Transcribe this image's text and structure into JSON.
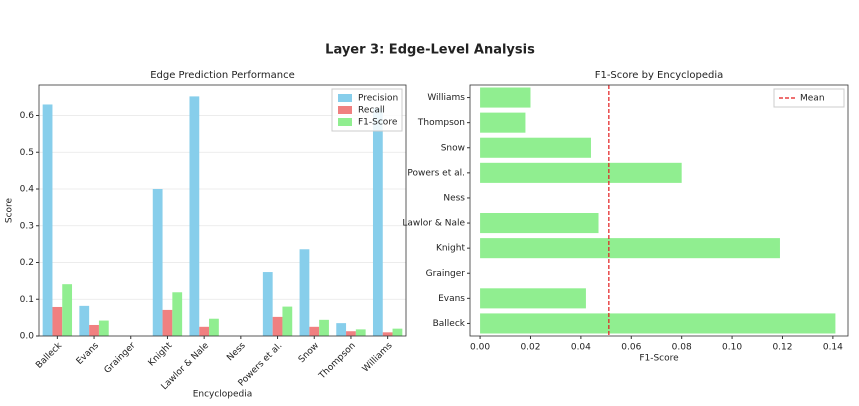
{
  "title": "Layer 3: Edge-Level Analysis",
  "chart_data": [
    {
      "type": "bar",
      "title": "Edge Prediction Performance",
      "xlabel": "Encyclopedia",
      "ylabel": "Score",
      "categories": [
        "Balleck",
        "Evans",
        "Grainger",
        "Knight",
        "Lawlor & Nale",
        "Ness",
        "Powers et al.",
        "Snow",
        "Thompson",
        "Williams"
      ],
      "series": [
        {
          "name": "Precision",
          "color": "#87ceeb",
          "values": [
            0.63,
            0.082,
            0,
            0.4,
            0.652,
            0,
            0.174,
            0.236,
            0.035,
            0.62
          ]
        },
        {
          "name": "Recall",
          "color": "#f08080",
          "values": [
            0.079,
            0.03,
            0,
            0.071,
            0.025,
            0,
            0.052,
            0.025,
            0.013,
            0.01
          ]
        },
        {
          "name": "F1-Score",
          "color": "#90ee90",
          "values": [
            0.141,
            0.042,
            0,
            0.119,
            0.047,
            0,
            0.08,
            0.044,
            0.018,
            0.02
          ]
        }
      ],
      "ylim": [
        0,
        0.683
      ],
      "yticks": [
        {
          "value": 0,
          "label": "0.0"
        },
        0.1,
        0.2,
        0.3,
        0.4,
        0.5,
        0.6
      ],
      "grid": true,
      "legend": "upper right"
    },
    {
      "type": "barh",
      "title": "F1-Score by Encyclopedia",
      "xlabel": "F1-Score",
      "categories": [
        "Balleck",
        "Evans",
        "Grainger",
        "Knight",
        "Lawlor & Nale",
        "Ness",
        "Powers et al.",
        "Snow",
        "Thompson",
        "Williams"
      ],
      "values": [
        0.141,
        0.042,
        0,
        0.119,
        0.047,
        0,
        0.08,
        0.044,
        0.018,
        0.02
      ],
      "color": "#90ee90",
      "mean": 0.0511,
      "mean_label": "Mean",
      "mean_color": "#e31a1c",
      "xlim": [
        -0.004,
        0.146
      ],
      "xticks": [
        {
          "value": 0,
          "label": "0.00"
        },
        0.02,
        0.04,
        0.06,
        0.08,
        {
          "value": 0.1,
          "label": "0.10"
        },
        0.12,
        0.14
      ],
      "grid": false,
      "legend": "upper right"
    }
  ]
}
